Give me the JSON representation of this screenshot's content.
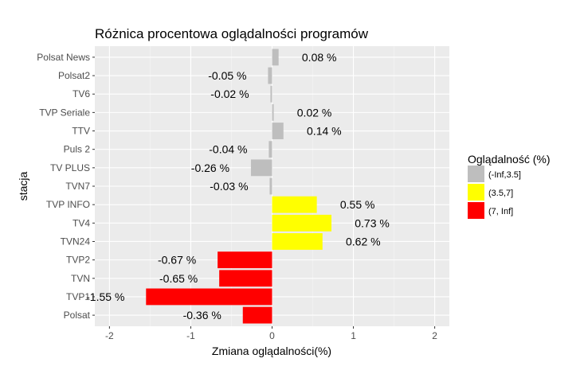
{
  "chart_data": {
    "type": "bar",
    "orientation": "horizontal",
    "title": "Różnica procentowa oglądalności programów",
    "xlabel": "Zmiana oglądalności(%)",
    "ylabel": "stacja",
    "xlim": [
      -2.18,
      2.18
    ],
    "xticks": [
      -2,
      -1,
      0,
      1,
      2
    ],
    "grid": true,
    "legend": {
      "title": "Oglądalność (%)",
      "position": "right",
      "items": [
        {
          "label": "(-Inf,3.5]",
          "color": "#bebebe"
        },
        {
          "label": "(3.5,7]",
          "color": "#ffff00"
        },
        {
          "label": "(7, Inf]",
          "color": "#ff0000"
        }
      ]
    },
    "categories": [
      "Polsat News",
      "Polsat2",
      "TV6",
      "TVP Seriale",
      "TTV",
      "Puls 2",
      "TV PLUS",
      "TVN7",
      "TVP INFO",
      "TV4",
      "TVN24",
      "TVP2",
      "TVN",
      "TVP1",
      "Polsat"
    ],
    "values": [
      0.08,
      -0.05,
      -0.02,
      0.02,
      0.14,
      -0.04,
      -0.26,
      -0.03,
      0.55,
      0.73,
      0.62,
      -0.67,
      -0.65,
      -1.55,
      -0.36
    ],
    "labels": [
      "0.08 %",
      "-0.05 %",
      "-0.02 %",
      "0.02 %",
      "0.14 %",
      "-0.04 %",
      "-0.26 %",
      "-0.03 %",
      "0.55 %",
      "0.73 %",
      "0.62 %",
      "-0.67 %",
      "-0.65 %",
      "-1.55 %",
      "-0.36 %"
    ],
    "groups": [
      "(-Inf,3.5]",
      "(-Inf,3.5]",
      "(-Inf,3.5]",
      "(-Inf,3.5]",
      "(-Inf,3.5]",
      "(-Inf,3.5]",
      "(-Inf,3.5]",
      "(-Inf,3.5]",
      "(3.5,7]",
      "(3.5,7]",
      "(3.5,7]",
      "(7, Inf]",
      "(7, Inf]",
      "(7, Inf]",
      "(7, Inf]"
    ]
  }
}
